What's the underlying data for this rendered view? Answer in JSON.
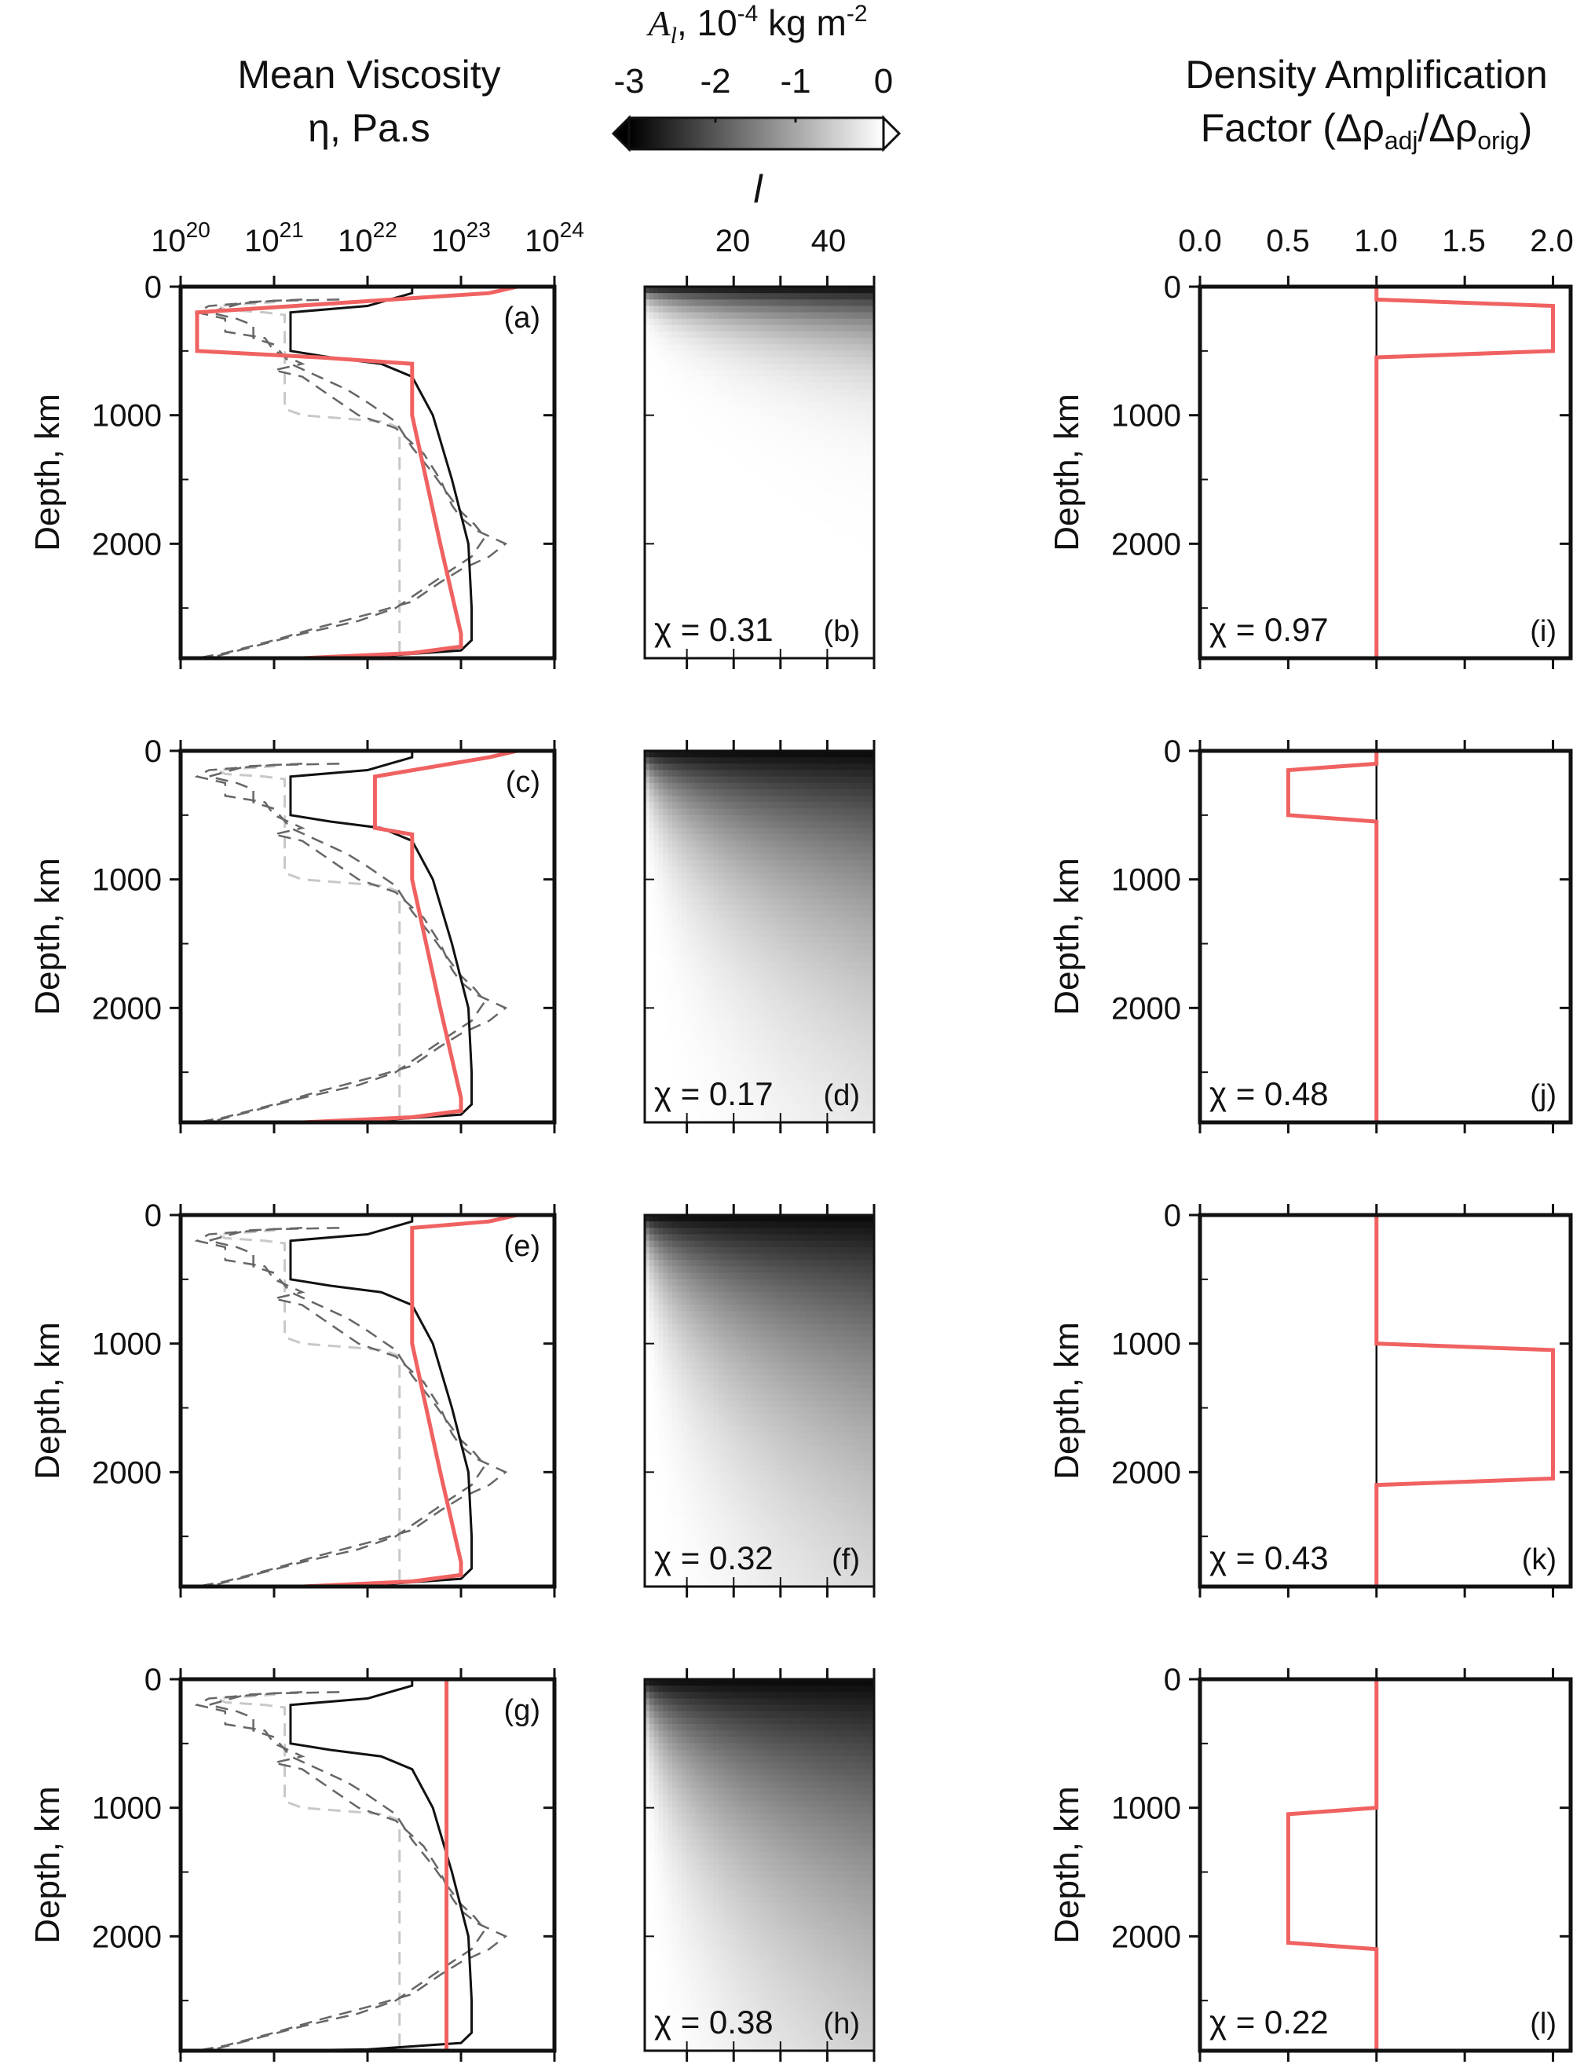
{
  "header": {
    "visc_title1": "Mean Viscosity",
    "visc_title2": "η, Pa.s",
    "dens_title1": "Density Amplification",
    "dens_title2": "Factor (Δρ",
    "dens_sub1": "adj",
    "dens_mid": "/Δρ",
    "dens_sub2": "orig",
    "dens_end": ")",
    "cbar_title_sym": "A",
    "cbar_title_sub": "l",
    "cbar_title_rest": ", 10",
    "cbar_title_exp": "-4",
    "cbar_title_unit": " kg m",
    "cbar_title_unit_exp": "-2",
    "cbar_ticks": [
      "-3",
      "-2",
      "-1",
      "0"
    ],
    "l_label": "l",
    "depth_label": "Depth, km"
  },
  "chart_data": [
    {
      "panel": "viscosity",
      "type": "line",
      "xscale": "log",
      "xlim": [
        1e+20,
        1e+24
      ],
      "xticks": [
        "10",
        "10",
        "10",
        "10",
        "10"
      ],
      "xtick_exps": [
        "20",
        "21",
        "22",
        "23",
        "24"
      ],
      "ylabel": "Depth, km",
      "ylim": [
        2890,
        0
      ],
      "yticks": [
        "0",
        "1000",
        "2000"
      ],
      "reference_curves": {
        "black_solid": [
          [
            3e+22,
            0
          ],
          [
            3e+22,
            50
          ],
          [
            1e+22,
            150
          ],
          [
            1.5e+21,
            200
          ],
          [
            1.5e+21,
            500
          ],
          [
            4e+21,
            550
          ],
          [
            1.4e+22,
            600
          ],
          [
            3e+22,
            700
          ],
          [
            5e+22,
            1000
          ],
          [
            8e+22,
            1500
          ],
          [
            1.2e+23,
            2000
          ],
          [
            1.3e+23,
            2500
          ],
          [
            1.3e+23,
            2750
          ],
          [
            1e+23,
            2830
          ],
          [
            1e+22,
            2880
          ],
          [
            1e+21,
            2890
          ]
        ],
        "light_dashed": [
          [
            1e+21,
            100
          ],
          [
            1e+21,
            120
          ],
          [
            2.5e+20,
            150
          ],
          [
            3e+20,
            180
          ],
          [
            8e+20,
            200
          ],
          [
            1.3e+21,
            220
          ],
          [
            1.3e+21,
            950
          ],
          [
            2e+21,
            1000
          ],
          [
            1.5e+22,
            1050
          ],
          [
            2.2e+22,
            1100
          ],
          [
            2.2e+22,
            2890
          ]
        ],
        "gray_dashed_1": [
          [
            5e+21,
            100
          ],
          [
            1e+21,
            110
          ],
          [
            2e+20,
            150
          ],
          [
            1.5e+20,
            200
          ],
          [
            3e+20,
            250
          ],
          [
            3e+20,
            350
          ],
          [
            8e+20,
            400
          ],
          [
            1e+21,
            500
          ],
          [
            2e+21,
            600
          ],
          [
            1e+21,
            650
          ],
          [
            2e+21,
            700
          ],
          [
            4e+21,
            850
          ],
          [
            8e+21,
            1000
          ],
          [
            2e+22,
            1100
          ],
          [
            4e+22,
            1300
          ],
          [
            6e+22,
            1500
          ],
          [
            8e+22,
            1700
          ],
          [
            1e+23,
            1800
          ],
          [
            1.5e+23,
            1900
          ],
          [
            3e+23,
            2000
          ],
          [
            2e+23,
            2100
          ],
          [
            1e+23,
            2200
          ],
          [
            6e+22,
            2300
          ],
          [
            3e+22,
            2450
          ],
          [
            1e+22,
            2550
          ],
          [
            3e+21,
            2650
          ],
          [
            1e+21,
            2750
          ],
          [
            3e+20,
            2850
          ],
          [
            1.5e+20,
            2890
          ]
        ],
        "gray_dashed_2": [
          [
            2e+21,
            100
          ],
          [
            5e+20,
            120
          ],
          [
            2e+20,
            200
          ],
          [
            4e+20,
            250
          ],
          [
            6e+20,
            300
          ],
          [
            6e+20,
            400
          ],
          [
            1e+21,
            450
          ],
          [
            1.5e+21,
            600
          ],
          [
            3e+21,
            700
          ],
          [
            6e+21,
            800
          ],
          [
            1e+22,
            900
          ],
          [
            2e+22,
            1050
          ],
          [
            3e+22,
            1250
          ],
          [
            5e+22,
            1450
          ],
          [
            7e+22,
            1600
          ],
          [
            1e+23,
            1750
          ],
          [
            1.4e+23,
            1850
          ],
          [
            1.8e+23,
            1950
          ],
          [
            1.3e+23,
            2100
          ],
          [
            8e+22,
            2200
          ],
          [
            4e+22,
            2350
          ],
          [
            2e+22,
            2500
          ],
          [
            8e+21,
            2600
          ],
          [
            2e+21,
            2700
          ],
          [
            6e+20,
            2800
          ],
          [
            2e+20,
            2890
          ]
        ]
      },
      "series": [
        {
          "panel_letter": "(a)",
          "color": "#f06262",
          "values": [
            [
              4e+23,
              0
            ],
            [
              2e+23,
              50
            ],
            [
              1.5e+20,
              200
            ],
            [
              1.5e+20,
              500
            ],
            [
              3e+21,
              550
            ],
            [
              3e+22,
              600
            ],
            [
              3e+22,
              1000
            ],
            [
              6e+22,
              2000
            ],
            [
              1e+23,
              2700
            ],
            [
              1e+23,
              2800
            ],
            [
              3e+22,
              2850
            ],
            [
              2e+21,
              2890
            ]
          ]
        },
        {
          "panel_letter": "(c)",
          "color": "#f06262",
          "values": [
            [
              4e+23,
              0
            ],
            [
              2e+23,
              50
            ],
            [
              1.2e+22,
              200
            ],
            [
              1.2e+22,
              600
            ],
            [
              3e+22,
              650
            ],
            [
              3e+22,
              1000
            ],
            [
              6e+22,
              2000
            ],
            [
              1e+23,
              2700
            ],
            [
              1e+23,
              2800
            ],
            [
              3e+22,
              2850
            ],
            [
              2e+21,
              2890
            ]
          ]
        },
        {
          "panel_letter": "(e)",
          "color": "#f06262",
          "values": [
            [
              4e+23,
              0
            ],
            [
              2e+23,
              50
            ],
            [
              3e+22,
              100
            ],
            [
              3e+22,
              1000
            ],
            [
              6e+22,
              2000
            ],
            [
              1e+23,
              2700
            ],
            [
              1e+23,
              2800
            ],
            [
              3e+22,
              2850
            ],
            [
              2e+21,
              2890
            ]
          ]
        },
        {
          "panel_letter": "(g)",
          "color": "#f06262",
          "values": [
            [
              7e+22,
              0
            ],
            [
              7e+22,
              2890
            ]
          ]
        }
      ]
    },
    {
      "panel": "admittance",
      "type": "heatmap",
      "x": "l",
      "xlim": [
        1,
        50
      ],
      "xticks": [
        "20",
        "40"
      ],
      "ylim": [
        2890,
        0
      ],
      "zlim": [
        -3,
        0
      ],
      "panels": [
        {
          "panel_letter": "(b)",
          "chi": "χ = 0.31",
          "decay_km": 300
        },
        {
          "panel_letter": "(d)",
          "chi": "χ = 0.17",
          "decay_km": 1200
        },
        {
          "panel_letter": "(f)",
          "chi": "χ = 0.32",
          "decay_km": 1500
        },
        {
          "panel_letter": "(h)",
          "chi": "χ = 0.38",
          "decay_km": 1700
        }
      ]
    },
    {
      "panel": "density_amplification",
      "type": "line",
      "xlim": [
        0,
        2.1
      ],
      "xticks": [
        "0.0",
        "0.5",
        "1.0",
        "1.5",
        "2.0"
      ],
      "ylabel": "Depth, km",
      "ylim": [
        2890,
        0
      ],
      "yticks": [
        "0",
        "1000",
        "2000"
      ],
      "reference_line": 1.0,
      "series": [
        {
          "panel_letter": "(i)",
          "chi": "χ = 0.97",
          "color": "#f06262",
          "values": [
            [
              1,
              0
            ],
            [
              1,
              100
            ],
            [
              2,
              150
            ],
            [
              2,
              500
            ],
            [
              1,
              550
            ],
            [
              1,
              2890
            ]
          ]
        },
        {
          "panel_letter": "(j)",
          "chi": "χ = 0.48",
          "color": "#f06262",
          "values": [
            [
              1,
              0
            ],
            [
              1,
              100
            ],
            [
              0.5,
              150
            ],
            [
              0.5,
              500
            ],
            [
              1,
              550
            ],
            [
              1,
              2890
            ]
          ]
        },
        {
          "panel_letter": "(k)",
          "chi": "χ = 0.43",
          "color": "#f06262",
          "values": [
            [
              1,
              0
            ],
            [
              1,
              1000
            ],
            [
              2,
              1050
            ],
            [
              2,
              2050
            ],
            [
              1,
              2100
            ],
            [
              1,
              2890
            ]
          ]
        },
        {
          "panel_letter": "(l)",
          "chi": "χ = 0.22",
          "color": "#f06262",
          "values": [
            [
              1,
              0
            ],
            [
              1,
              1000
            ],
            [
              0.5,
              1050
            ],
            [
              0.5,
              2050
            ],
            [
              1,
              2100
            ],
            [
              1,
              2890
            ]
          ]
        }
      ]
    }
  ]
}
